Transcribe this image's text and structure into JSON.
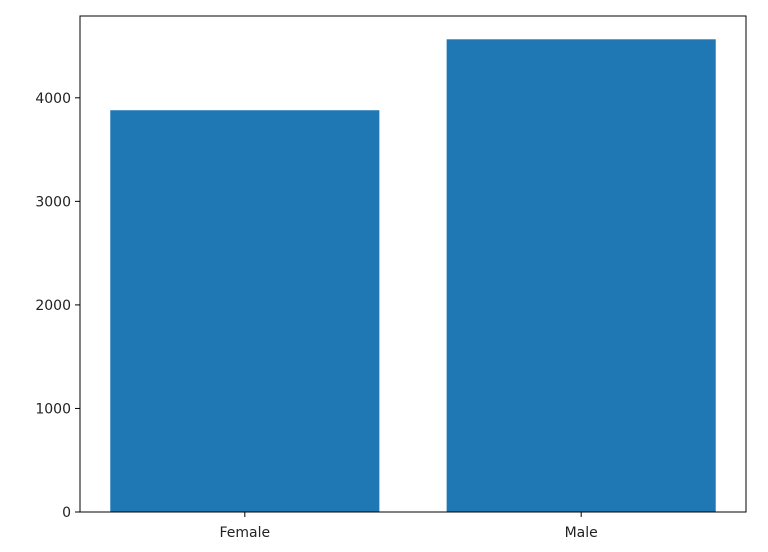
{
  "chart_data": {
    "type": "bar",
    "categories": [
      "Female",
      "Male"
    ],
    "values": [
      3880,
      4565
    ],
    "title": "",
    "xlabel": "",
    "ylabel": "",
    "ylim": [
      0,
      4790
    ],
    "yticks": [
      0,
      1000,
      2000,
      3000,
      4000
    ],
    "grid": false,
    "bar_color": "#1f77b4"
  }
}
